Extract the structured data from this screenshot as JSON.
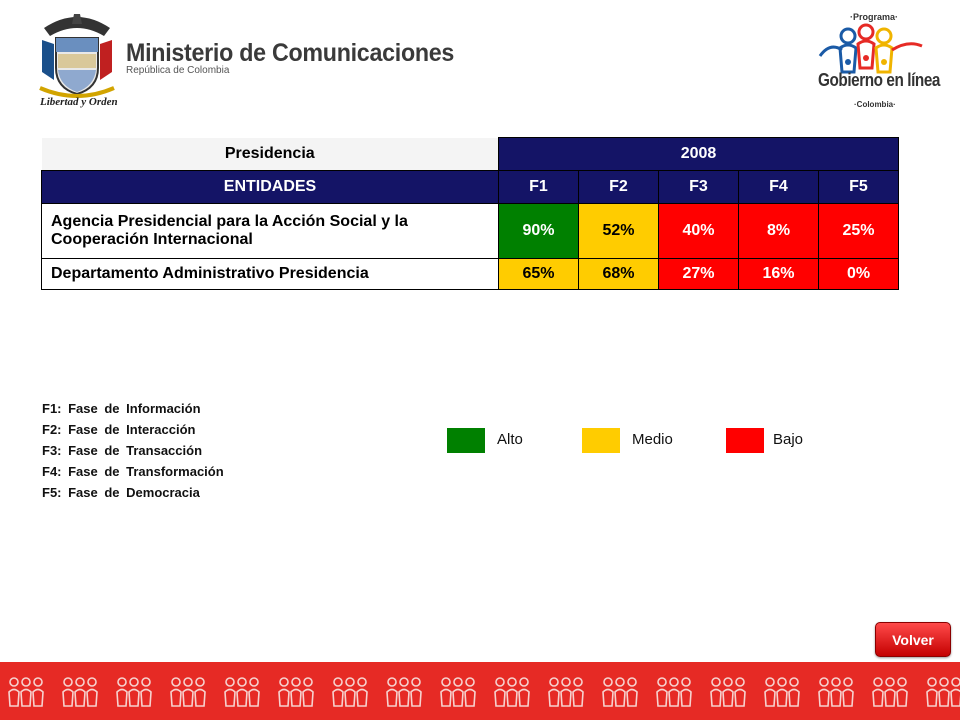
{
  "header": {
    "ministry_title": "Ministerio de Comunicaciones",
    "ministry_subtitle": "República de Colombia",
    "crest_caption": "Libertad y Orden",
    "program_top": "·Programa·",
    "program_name": "Gobierno en línea",
    "program_bottom": "·Colombia·"
  },
  "table": {
    "group_label": "Presidencia",
    "year": "2008",
    "col_entities": "ENTIDADES",
    "phases": [
      "F1",
      "F2",
      "F3",
      "F4",
      "F5"
    ],
    "rows": [
      {
        "entity": "Agencia Presidencial para la Acción Social y la Cooperación Internacional",
        "values": [
          "90%",
          "52%",
          "40%",
          "8%",
          "25%"
        ],
        "levels": [
          "alto",
          "medio",
          "bajo",
          "bajo",
          "bajo"
        ]
      },
      {
        "entity": "Departamento Administrativo Presidencia",
        "values": [
          "65%",
          "68%",
          "27%",
          "16%",
          "0%"
        ],
        "levels": [
          "medio",
          "medio",
          "bajo",
          "bajo",
          "bajo"
        ]
      }
    ]
  },
  "definitions": [
    "F1: Fase de Información",
    "F2: Fase de Interacción",
    "F3: Fase de Transacción",
    "F4: Fase de Transformación",
    "F5: Fase de Democracia"
  ],
  "legend": [
    {
      "label": "Alto",
      "color": "#008000"
    },
    {
      "label": "Medio",
      "color": "#ffcc00"
    },
    {
      "label": "Bajo",
      "color": "#ff0000"
    }
  ],
  "colors": {
    "navy": "#141466",
    "alto": "#008000",
    "medio": "#ffcc00",
    "bajo": "#ff0000",
    "band": "#e62a25"
  },
  "volver_label": "Volver"
}
